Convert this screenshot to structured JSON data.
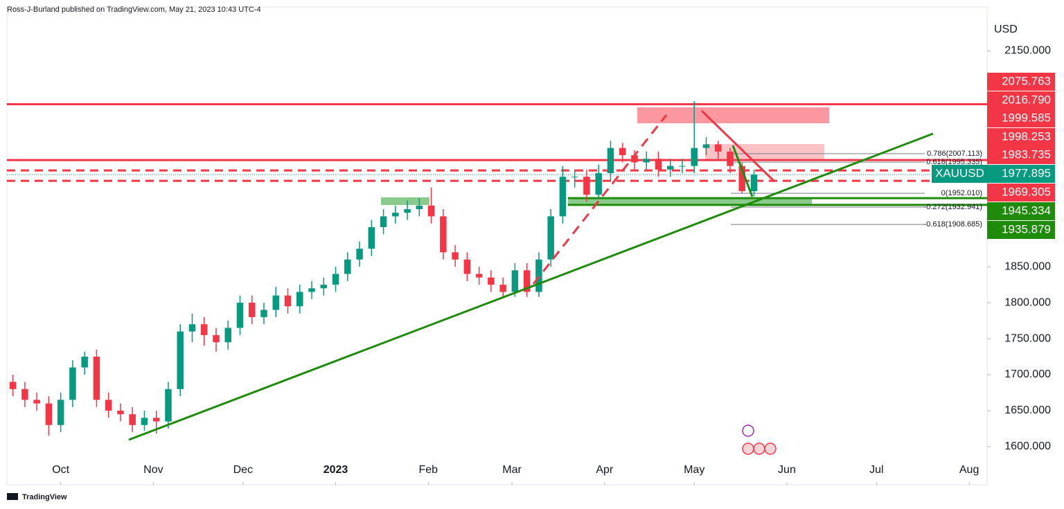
{
  "header": "Ross-J-Burland published on TradingView.com, May 21, 2023 10:43 UTC-4",
  "footer": "TradingView",
  "chart_data": {
    "type": "candlestick",
    "unit": "USD",
    "up_color": "#089981",
    "down_color": "#f23645",
    "xlim": [
      -18,
      310
    ],
    "ylim": [
      1547,
      2211
    ],
    "xticks": [
      {
        "value": 0,
        "label": "Oct"
      },
      {
        "value": 31,
        "label": "Nov"
      },
      {
        "value": 61,
        "label": "Dec"
      },
      {
        "value": 92,
        "label": "2023"
      },
      {
        "value": 123,
        "label": "Feb"
      },
      {
        "value": 151,
        "label": "Mar"
      },
      {
        "value": 182,
        "label": "Apr"
      },
      {
        "value": 212,
        "label": "May"
      },
      {
        "value": 243,
        "label": "Jun"
      },
      {
        "value": 273,
        "label": "Jul"
      },
      {
        "value": 304,
        "label": "Aug"
      }
    ],
    "yticks": [
      {
        "value": 1600,
        "label": "1600.000"
      },
      {
        "value": 1650,
        "label": "1650.000"
      },
      {
        "value": 1700,
        "label": "1700.000"
      },
      {
        "value": 1750,
        "label": "1750.000"
      },
      {
        "value": 1800,
        "label": "1800.000"
      },
      {
        "value": 1850,
        "label": "1850.000"
      },
      {
        "value": 2150,
        "label": "2150.000"
      }
    ],
    "x": [
      -16,
      -12,
      -8,
      -4,
      0,
      4,
      8,
      12,
      16,
      20,
      24,
      28,
      32,
      36,
      40,
      44,
      48,
      52,
      56,
      60,
      64,
      68,
      72,
      76,
      80,
      84,
      88,
      92,
      96,
      100,
      104,
      108,
      112,
      116,
      120,
      124,
      128,
      132,
      136,
      140,
      144,
      148,
      152,
      156,
      160,
      164,
      168,
      172,
      176,
      180,
      184,
      188,
      192,
      196,
      200,
      204,
      208,
      212,
      216,
      220,
      224,
      228,
      232
    ],
    "open": [
      1690,
      1680,
      1665,
      1660,
      1630,
      1665,
      1710,
      1725,
      1665,
      1650,
      1645,
      1630,
      1640,
      1635,
      1680,
      1760,
      1770,
      1755,
      1745,
      1765,
      1800,
      1780,
      1790,
      1810,
      1795,
      1815,
      1820,
      1825,
      1840,
      1860,
      1875,
      1905,
      1920,
      1925,
      1930,
      1935,
      1920,
      1870,
      1860,
      1840,
      1835,
      1825,
      1815,
      1845,
      1815,
      1860,
      1920,
      1975,
      1975,
      1950,
      1980,
      2015,
      2005,
      1995,
      2000,
      1985,
      1990,
      1990,
      2015,
      2020,
      2010,
      1990,
      1955
    ],
    "high": [
      1700,
      1690,
      1675,
      1670,
      1675,
      1720,
      1732,
      1735,
      1675,
      1660,
      1655,
      1650,
      1650,
      1690,
      1770,
      1785,
      1780,
      1765,
      1775,
      1810,
      1810,
      1800,
      1822,
      1820,
      1825,
      1830,
      1835,
      1850,
      1870,
      1885,
      1915,
      1930,
      1935,
      1942,
      1945,
      1960,
      1930,
      1880,
      1870,
      1850,
      1845,
      1835,
      1855,
      1855,
      1870,
      1930,
      1990,
      1985,
      1985,
      1992,
      2025,
      2022,
      2012,
      2010,
      2010,
      2000,
      2000,
      2080,
      2030,
      2025,
      2015,
      1995,
      1985
    ],
    "low": [
      1670,
      1655,
      1650,
      1615,
      1620,
      1655,
      1700,
      1655,
      1640,
      1635,
      1620,
      1622,
      1618,
      1625,
      1670,
      1745,
      1740,
      1732,
      1735,
      1755,
      1770,
      1770,
      1780,
      1785,
      1785,
      1805,
      1810,
      1815,
      1830,
      1850,
      1865,
      1895,
      1910,
      1915,
      1920,
      1910,
      1860,
      1850,
      1830,
      1825,
      1815,
      1808,
      1808,
      1808,
      1808,
      1850,
      1910,
      1960,
      1940,
      1945,
      1970,
      1995,
      1985,
      1985,
      1975,
      1975,
      1980,
      1980,
      2005,
      2000,
      1980,
      1952,
      1948
    ],
    "close": [
      1680,
      1665,
      1660,
      1630,
      1665,
      1710,
      1725,
      1665,
      1650,
      1645,
      1630,
      1640,
      1635,
      1680,
      1760,
      1770,
      1755,
      1745,
      1765,
      1800,
      1780,
      1790,
      1810,
      1795,
      1815,
      1820,
      1825,
      1840,
      1860,
      1875,
      1905,
      1920,
      1925,
      1930,
      1935,
      1920,
      1870,
      1860,
      1840,
      1835,
      1825,
      1815,
      1845,
      1815,
      1860,
      1920,
      1975,
      1975,
      1950,
      1980,
      2015,
      2005,
      1995,
      2000,
      1985,
      1990,
      1990,
      2015,
      2020,
      2010,
      1990,
      1955,
      1978
    ],
    "price_labels": [
      {
        "value": 2075.763,
        "color": "#f23645",
        "line": "solid"
      },
      {
        "value": {
          "value": 2016.79,
          "label": "2016.790"
        },
        "color": "#f23645"
      },
      {
        "value": 1999.585,
        "color": "#f23645"
      },
      {
        "value": 1998.253,
        "color": "#f23645",
        "line": "solid"
      },
      {
        "value": 1983.735,
        "color": "#f23645",
        "line": "dashed"
      },
      {
        "name": "XAUUSD",
        "value": 1977.895,
        "color": "#089981",
        "line": "dotted"
      },
      {
        "value": 1969.305,
        "color": "#f23645",
        "line": "dashed"
      },
      {
        "value": 1945.334,
        "color": "#1e8c0a",
        "line": "solid"
      },
      {
        "value": 1935.879,
        "color": "#1e8c0a",
        "line": "solid"
      }
    ],
    "fib_levels": [
      {
        "label": "0.786(2007.113)",
        "value": 2007.113
      },
      {
        "label": "0.618(1995.335)",
        "value": 1995.335
      },
      {
        "label": "0(1952.010)",
        "value": 1952.01
      },
      {
        "label": "-0.272(1932.941)",
        "value": 1932.941
      },
      {
        "label": "-0.618(1908.685)",
        "value": 1908.685
      }
    ]
  }
}
